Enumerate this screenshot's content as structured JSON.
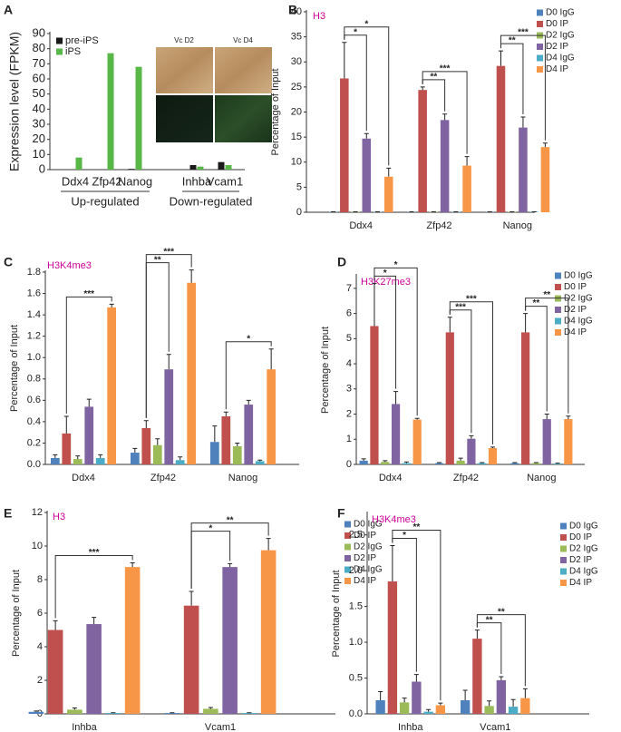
{
  "chart_data": [
    {
      "panel": "A",
      "type": "bar",
      "ylabel": "Expression level (FPKM)",
      "categories": [
        "Ddx4",
        "Zfp42",
        "Nanog",
        "Inhba",
        "Vcam1"
      ],
      "group_labels": [
        "Up-regulated",
        "Down-regulated"
      ],
      "image_labels": [
        "Vc D2",
        "Vc D4"
      ],
      "series": [
        {
          "name": "pre-iPS",
          "color": "#1a1a1a",
          "values": [
            0,
            0,
            0.5,
            3,
            5
          ]
        },
        {
          "name": "iPS",
          "color": "#57b847",
          "values": [
            8,
            77,
            68,
            2,
            3
          ]
        }
      ],
      "ylim": [
        0,
        90
      ],
      "yticks": [
        0,
        10,
        20,
        30,
        40,
        50,
        60,
        70,
        80,
        90
      ]
    },
    {
      "panel": "B",
      "type": "bar",
      "title": "H3",
      "ylabel": "Percentage of Input",
      "categories": [
        "Ddx4",
        "Zfp42",
        "Nanog"
      ],
      "series": [
        {
          "name": "D0 IgG",
          "color": "#4f81bd",
          "values": [
            0.1,
            0.1,
            0.1
          ],
          "errors": [
            0,
            0,
            0
          ]
        },
        {
          "name": "D0 IP",
          "color": "#c0504d",
          "values": [
            26.7,
            24.4,
            29.2
          ],
          "errors": [
            7.2,
            0.6,
            3
          ]
        },
        {
          "name": "D2 IgG",
          "color": "#9bbb59",
          "values": [
            0.1,
            0.1,
            0.1
          ],
          "errors": [
            0,
            0,
            0
          ]
        },
        {
          "name": "D2 IP",
          "color": "#8064a2",
          "values": [
            14.7,
            18.4,
            16.9
          ],
          "errors": [
            1,
            1.2,
            2.1
          ]
        },
        {
          "name": "D4 IgG",
          "color": "#4bacc6",
          "values": [
            0.1,
            0.1,
            0.1
          ],
          "errors": [
            0,
            0,
            0
          ]
        },
        {
          "name": "D4 IP",
          "color": "#f79646",
          "values": [
            7.1,
            9.3,
            13
          ],
          "errors": [
            1.7,
            1.8,
            0.8
          ]
        }
      ],
      "ylim": [
        0,
        40
      ],
      "yticks": [
        0,
        5,
        10,
        15,
        20,
        25,
        30,
        35,
        40
      ],
      "annotations": [
        {
          "category": 0,
          "series": [
            1,
            3
          ],
          "label": "*"
        },
        {
          "category": 0,
          "series": [
            1,
            5
          ],
          "label": "*"
        },
        {
          "category": 1,
          "series": [
            1,
            3
          ],
          "label": "**"
        },
        {
          "category": 1,
          "series": [
            1,
            5
          ],
          "label": "***"
        },
        {
          "category": 2,
          "series": [
            1,
            3
          ],
          "label": "**"
        },
        {
          "category": 2,
          "series": [
            1,
            5
          ],
          "label": "***"
        }
      ]
    },
    {
      "panel": "C",
      "type": "bar",
      "title": "H3K4me3",
      "ylabel": "Percentage of Input",
      "categories": [
        "Ddx4",
        "Zfp42",
        "Nanog"
      ],
      "series": [
        {
          "color": "#4f81bd",
          "values": [
            0.06,
            0.11,
            0.21
          ],
          "errors": [
            0.03,
            0.04,
            0.15
          ]
        },
        {
          "color": "#c0504d",
          "values": [
            0.29,
            0.34,
            0.45
          ],
          "errors": [
            0.16,
            0.07,
            0.04
          ]
        },
        {
          "color": "#9bbb59",
          "values": [
            0.05,
            0.18,
            0.17
          ],
          "errors": [
            0.03,
            0.06,
            0.03
          ]
        },
        {
          "color": "#8064a2",
          "values": [
            0.54,
            0.89,
            0.56
          ],
          "errors": [
            0.07,
            0.14,
            0.04
          ]
        },
        {
          "color": "#4bacc6",
          "values": [
            0.06,
            0.04,
            0.03
          ],
          "errors": [
            0.03,
            0.03,
            0.01
          ]
        },
        {
          "color": "#f79646",
          "values": [
            1.47,
            1.7,
            0.89
          ],
          "errors": [
            0.03,
            0.12,
            0.19
          ]
        }
      ],
      "ylim": [
        0,
        1.8
      ],
      "yticks": [
        {
          "value": 0,
          "label": "0.0"
        },
        0.2,
        0.4,
        0.6,
        0.8,
        {
          "value": 1,
          "label": "1.0"
        },
        1.2,
        1.4,
        1.6,
        1.8
      ],
      "annotations": [
        {
          "category": 0,
          "series": [
            1,
            5
          ],
          "label": "***"
        },
        {
          "category": 1,
          "series": [
            1,
            3
          ],
          "label": "**"
        },
        {
          "category": 1,
          "series": [
            1,
            5
          ],
          "label": "***"
        },
        {
          "category": 2,
          "series": [
            1,
            5
          ],
          "label": "*"
        }
      ]
    },
    {
      "panel": "D",
      "type": "bar",
      "title": "H3K27me3",
      "ylabel": "Percentage of Input",
      "categories": [
        "Ddx4",
        "Zfp42",
        "Nanog"
      ],
      "series": [
        {
          "name": "D0 IgG",
          "color": "#4f81bd",
          "values": [
            0.15,
            0.05,
            0.05
          ],
          "errors": [
            0.07,
            0.02,
            0.02
          ]
        },
        {
          "name": "D0 IP",
          "color": "#c0504d",
          "values": [
            5.5,
            5.25,
            5.25
          ],
          "errors": [
            1.7,
            0.6,
            0.75
          ]
        },
        {
          "name": "D2 IgG",
          "color": "#9bbb59",
          "values": [
            0.1,
            0.15,
            0.05
          ],
          "errors": [
            0.05,
            0.1,
            0.02
          ]
        },
        {
          "name": "D2 IP",
          "color": "#8064a2",
          "values": [
            2.4,
            1.02,
            1.8
          ],
          "errors": [
            0.5,
            0.12,
            0.2
          ]
        },
        {
          "name": "D4 IgG",
          "color": "#4bacc6",
          "values": [
            0.05,
            0.05,
            0.03
          ],
          "errors": [
            0.05,
            0.02,
            0.02
          ]
        },
        {
          "name": "D4 IP",
          "color": "#f79646",
          "values": [
            1.78,
            0.65,
            1.8
          ],
          "errors": [
            0.05,
            0.04,
            0.12
          ]
        }
      ],
      "ylim": [
        0,
        7.5
      ],
      "yticks": [
        0,
        1,
        2,
        3,
        4,
        5,
        6,
        7
      ],
      "annotations": [
        {
          "category": 0,
          "series": [
            1,
            3
          ],
          "label": "*"
        },
        {
          "category": 0,
          "series": [
            1,
            5
          ],
          "label": "*"
        },
        {
          "category": 1,
          "series": [
            1,
            3
          ],
          "label": "***"
        },
        {
          "category": 1,
          "series": [
            1,
            5
          ],
          "label": "***"
        },
        {
          "category": 2,
          "series": [
            1,
            3
          ],
          "label": "**"
        },
        {
          "category": 2,
          "series": [
            1,
            5
          ],
          "label": "**"
        }
      ]
    },
    {
      "panel": "E",
      "type": "bar",
      "title": "H3",
      "ylabel": "Percentage of Input",
      "categories": [
        "Inhba",
        "Vcam1"
      ],
      "series": [
        {
          "name": "D0 IgG",
          "color": "#4f81bd",
          "values": [
            0.12,
            0.05
          ],
          "errors": [
            0.05,
            0.02
          ]
        },
        {
          "name": "D0 IP",
          "color": "#c0504d",
          "values": [
            5,
            6.45
          ],
          "errors": [
            0.55,
            0.85
          ]
        },
        {
          "name": "D2 IgG",
          "color": "#9bbb59",
          "values": [
            0.25,
            0.3
          ],
          "errors": [
            0.1,
            0.08
          ]
        },
        {
          "name": "D2 IP",
          "color": "#8064a2",
          "values": [
            5.35,
            8.75
          ],
          "errors": [
            0.4,
            0.2
          ]
        },
        {
          "name": "D4 IgG",
          "color": "#4bacc6",
          "values": [
            0.05,
            0.05
          ],
          "errors": [
            0.02,
            0.02
          ]
        },
        {
          "name": "D4 IP",
          "color": "#f79646",
          "values": [
            8.75,
            9.75
          ],
          "errors": [
            0.25,
            0.7
          ]
        }
      ],
      "ylim": [
        0,
        12
      ],
      "yticks": [
        0,
        2,
        4,
        6,
        8,
        10,
        12
      ],
      "annotations": [
        {
          "category": 0,
          "series": [
            1,
            5
          ],
          "label": "***"
        },
        {
          "category": 1,
          "series": [
            1,
            3
          ],
          "label": "*"
        },
        {
          "category": 1,
          "series": [
            1,
            5
          ],
          "label": "**"
        }
      ]
    },
    {
      "panel": "F",
      "type": "bar",
      "title": "H3K4me3",
      "ylabel": "Percentage of Input",
      "categories": [
        "Inhba",
        "Vcam1"
      ],
      "series": [
        {
          "name": "D0 IgG",
          "color": "#4f81bd",
          "values": [
            0.19,
            0.19
          ],
          "errors": [
            0.12,
            0.14
          ]
        },
        {
          "name": "D0 IP",
          "color": "#c0504d",
          "values": [
            1.85,
            1.05
          ],
          "errors": [
            0.5,
            0.12
          ]
        },
        {
          "name": "D2 IgG",
          "color": "#9bbb59",
          "values": [
            0.16,
            0.11
          ],
          "errors": [
            0.06,
            0.07
          ]
        },
        {
          "name": "D2 IP",
          "color": "#8064a2",
          "values": [
            0.45,
            0.47
          ],
          "errors": [
            0.1,
            0.05
          ]
        },
        {
          "name": "D4 IgG",
          "color": "#4bacc6",
          "values": [
            0.03,
            0.1
          ],
          "errors": [
            0.03,
            0.1
          ]
        },
        {
          "name": "D4 IP",
          "color": "#f79646",
          "values": [
            0.12,
            0.22
          ],
          "errors": [
            0.03,
            0.13
          ]
        }
      ],
      "ylim": [
        0,
        2.8
      ],
      "yticks": [
        {
          "value": 0,
          "label": "0.0"
        },
        0.5,
        {
          "value": 1,
          "label": "1.0"
        },
        1.5,
        {
          "value": 2,
          "label": "2.0"
        },
        2.5
      ],
      "annotations": [
        {
          "category": 0,
          "series": [
            1,
            3
          ],
          "label": "*"
        },
        {
          "category": 0,
          "series": [
            1,
            5
          ],
          "label": "**"
        },
        {
          "category": 1,
          "series": [
            1,
            3
          ],
          "label": "**"
        },
        {
          "category": 1,
          "series": [
            1,
            5
          ],
          "label": "**"
        }
      ]
    }
  ]
}
